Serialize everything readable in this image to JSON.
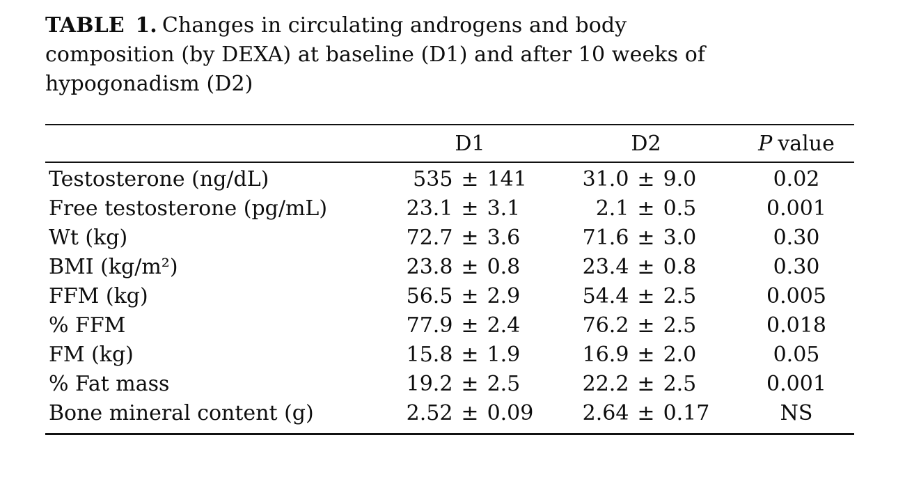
{
  "caption": {
    "label": "TABLE 1.",
    "line1": "Changes in circulating androgens and body",
    "line2": "composition (by DEXA) at baseline (D1) and after 10 weeks of",
    "line3": "hypogonadism (D2)"
  },
  "symbols": {
    "plus_minus": "±"
  },
  "table": {
    "columns": {
      "d1": "D1",
      "d2": "D2",
      "p_italic": "P",
      "p_rest": "value"
    },
    "rows": [
      {
        "label": "Testosterone (ng/dL)",
        "d1_mean": "535",
        "d1_sd": "141",
        "d2_mean": "31.0",
        "d2_sd": "9.0",
        "p": "0.02"
      },
      {
        "label": "Free testosterone (pg/mL)",
        "d1_mean": "23.1",
        "d1_sd": "3.1",
        "d2_mean": "2.1",
        "d2_sd": "0.5",
        "p": "0.001"
      },
      {
        "label": "Wt (kg)",
        "d1_mean": "72.7",
        "d1_sd": "3.6",
        "d2_mean": "71.6",
        "d2_sd": "3.0",
        "p": "0.30"
      },
      {
        "label": "BMI (kg/m²)",
        "d1_mean": "23.8",
        "d1_sd": "0.8",
        "d2_mean": "23.4",
        "d2_sd": "0.8",
        "p": "0.30"
      },
      {
        "label": "FFM (kg)",
        "d1_mean": "56.5",
        "d1_sd": "2.9",
        "d2_mean": "54.4",
        "d2_sd": "2.5",
        "p": "0.005"
      },
      {
        "label": "% FFM",
        "d1_mean": "77.9",
        "d1_sd": "2.4",
        "d2_mean": "76.2",
        "d2_sd": "2.5",
        "p": "0.018"
      },
      {
        "label": "FM (kg)",
        "d1_mean": "15.8",
        "d1_sd": "1.9",
        "d2_mean": "16.9",
        "d2_sd": "2.0",
        "p": "0.05"
      },
      {
        "label": "% Fat mass",
        "d1_mean": "19.2",
        "d1_sd": "2.5",
        "d2_mean": "22.2",
        "d2_sd": "2.5",
        "p": "0.001"
      },
      {
        "label": "Bone mineral content (g)",
        "d1_mean": "2.52",
        "d1_sd": "0.09",
        "d2_mean": "2.64",
        "d2_sd": "0.17",
        "p": "NS"
      }
    ]
  }
}
